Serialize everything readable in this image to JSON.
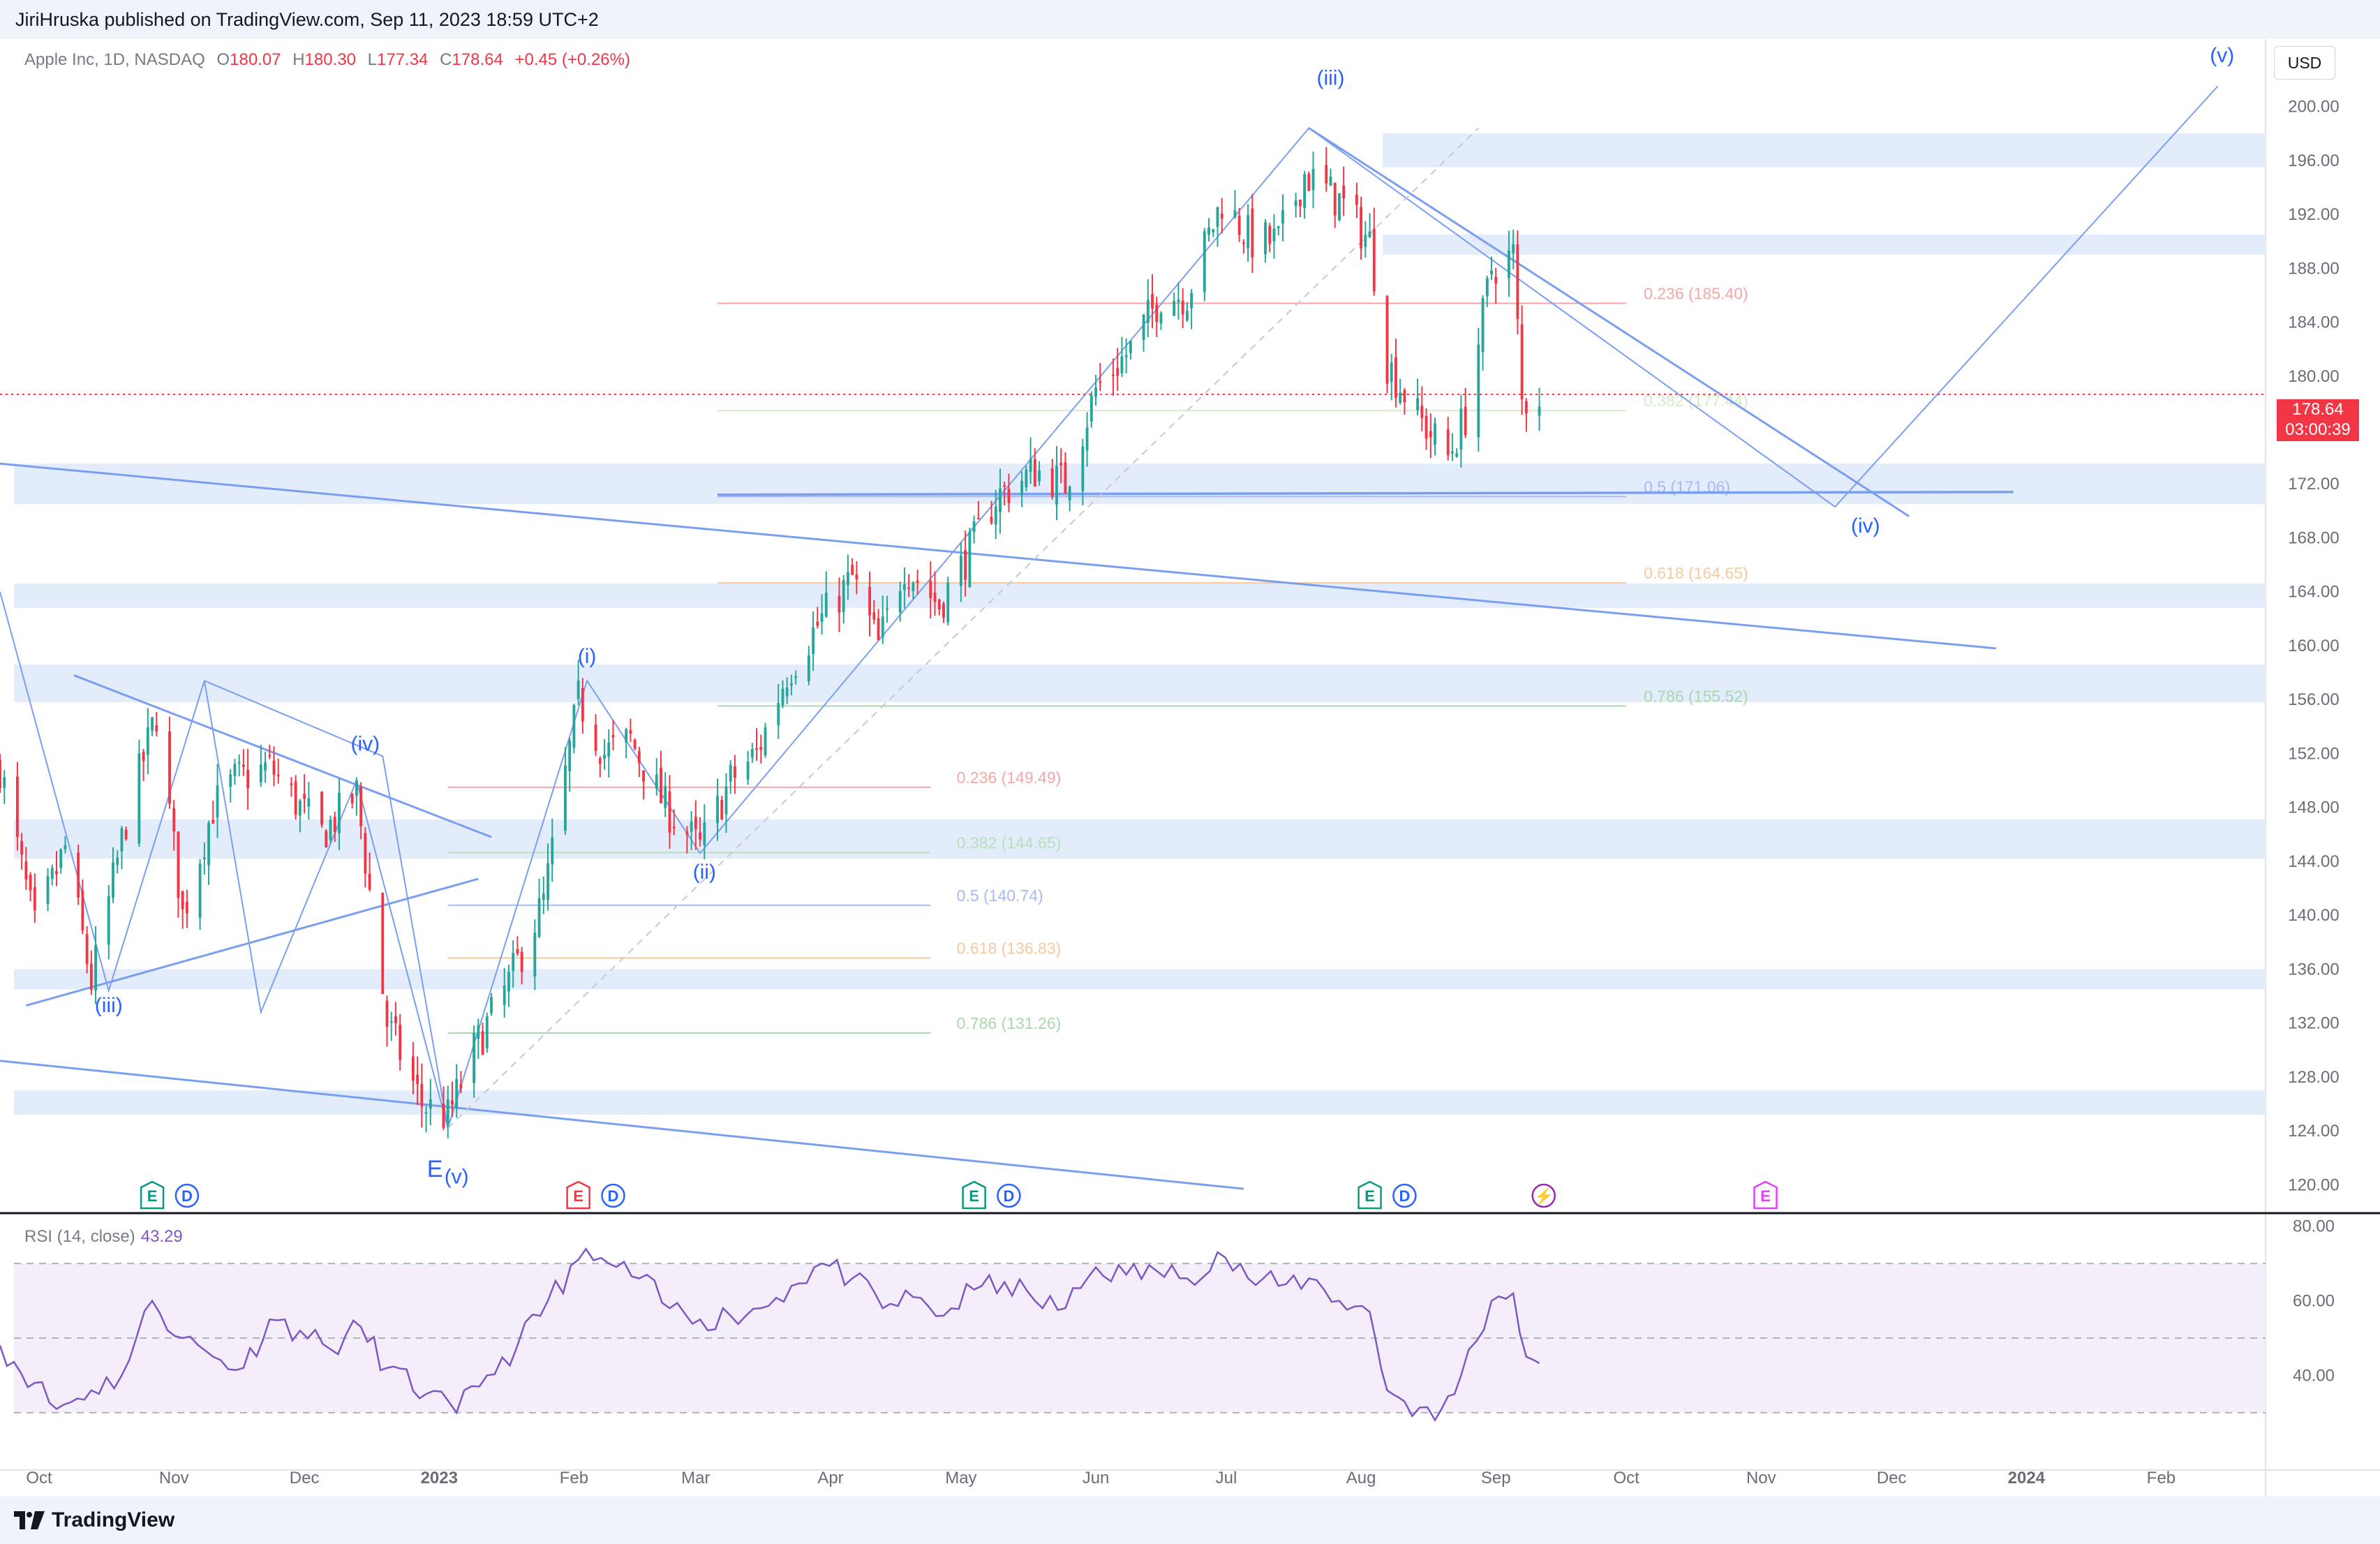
{
  "header": {
    "publisher": "JiriHruska published on TradingView.com, Sep 11, 2023 18:59 UTC+2"
  },
  "legend": {
    "symbol": "Apple Inc, 1D, NASDAQ",
    "o_key": "O",
    "o": "180.07",
    "h_key": "H",
    "h": "180.30",
    "l_key": "L",
    "l": "177.34",
    "c_key": "C",
    "c": "178.64",
    "change": "+0.45 (+0.26%)"
  },
  "currency": "USD",
  "price_tag": {
    "price": "178.64",
    "countdown": "03:00:39"
  },
  "rsi": {
    "label": "RSI (14, close)",
    "value": "43.29"
  },
  "footer": {
    "brand": "TradingView"
  },
  "colors": {
    "up": "#26a69a",
    "down": "#f23645",
    "line": "#7b9ff0",
    "wave_label": "#2962ff",
    "rsi": "#7e57c2",
    "zone": "#e3ecfb"
  },
  "chart_data": {
    "type": "line",
    "subtype": "candlestick with Elliott-wave annotations",
    "x_axis": {
      "tick_labels": [
        "Oct",
        "Nov",
        "Dec",
        "2023",
        "Feb",
        "Mar",
        "Apr",
        "May",
        "Jun",
        "Jul",
        "Aug",
        "Sep",
        "Oct",
        "Nov",
        "Dec",
        "2024",
        "Feb"
      ],
      "range": [
        "2022-09-22",
        "2024-02-25"
      ]
    },
    "y_axis": {
      "side": "right",
      "ylim": [
        118,
        205
      ],
      "ticks": [
        120,
        124,
        128,
        132,
        136,
        140,
        144,
        148,
        152,
        156,
        160,
        164,
        168,
        172,
        176,
        180,
        184,
        188,
        192,
        196,
        200
      ]
    },
    "price_path": [
      [
        "2022-09-22",
        151
      ],
      [
        "2022-09-30",
        139
      ],
      [
        "2022-10-07",
        145
      ],
      [
        "2022-10-13",
        135
      ],
      [
        "2022-10-21",
        147
      ],
      [
        "2022-10-28",
        155
      ],
      [
        "2022-11-03",
        140
      ],
      [
        "2022-11-10",
        148
      ],
      [
        "2022-11-15",
        150
      ],
      [
        "2022-11-23",
        151
      ],
      [
        "2022-11-30",
        148
      ],
      [
        "2022-12-05",
        146
      ],
      [
        "2022-12-13",
        149
      ],
      [
        "2022-12-20",
        132
      ],
      [
        "2022-12-28",
        126
      ],
      [
        "2023-01-03",
        125
      ],
      [
        "2023-01-09",
        130
      ],
      [
        "2023-01-17",
        135
      ],
      [
        "2023-01-25",
        141
      ],
      [
        "2023-02-02",
        156
      ],
      [
        "2023-02-08",
        152
      ],
      [
        "2023-02-14",
        153
      ],
      [
        "2023-02-22",
        148
      ],
      [
        "2023-03-02",
        145
      ],
      [
        "2023-03-09",
        150
      ],
      [
        "2023-03-15",
        152
      ],
      [
        "2023-03-22",
        158
      ],
      [
        "2023-03-30",
        162
      ],
      [
        "2023-04-06",
        165
      ],
      [
        "2023-04-12",
        160
      ],
      [
        "2023-04-18",
        166
      ],
      [
        "2023-04-26",
        163
      ],
      [
        "2023-05-03",
        167
      ],
      [
        "2023-05-09",
        171
      ],
      [
        "2023-05-18",
        173
      ],
      [
        "2023-05-25",
        172
      ],
      [
        "2023-06-01",
        179
      ],
      [
        "2023-06-09",
        182
      ],
      [
        "2023-06-16",
        186
      ],
      [
        "2023-06-22",
        186
      ],
      [
        "2023-06-30",
        193
      ],
      [
        "2023-07-07",
        190
      ],
      [
        "2023-07-13",
        190
      ],
      [
        "2023-07-19",
        195
      ],
      [
        "2023-07-27",
        193
      ],
      [
        "2023-08-03",
        190
      ],
      [
        "2023-08-07",
        181
      ],
      [
        "2023-08-14",
        177
      ],
      [
        "2023-08-21",
        174
      ],
      [
        "2023-08-25",
        177
      ],
      [
        "2023-08-31",
        188
      ],
      [
        "2023-09-05",
        189
      ],
      [
        "2023-09-07",
        178
      ],
      [
        "2023-09-11",
        178.64
      ]
    ],
    "fib_levels_set1": [
      {
        "label": "0.236 (149.49)",
        "value": 149.49,
        "color": "#f7a6a6"
      },
      {
        "label": "0.382 (144.65)",
        "value": 144.65,
        "color": "#b8e0bb"
      },
      {
        "label": "0.5 (140.74)",
        "value": 140.74,
        "color": "#a9b9f2"
      },
      {
        "label": "0.618 (136.83)",
        "value": 136.83,
        "color": "#f8c89e"
      },
      {
        "label": "0.786 (131.26)",
        "value": 131.26,
        "color": "#a8d8ab"
      }
    ],
    "fib_levels_set2": [
      {
        "label": "0.236 (185.40)",
        "value": 185.4,
        "color": "#f7a6a6"
      },
      {
        "label": "0.382 (177.44)",
        "value": 177.44,
        "color": "#d8e8c8"
      },
      {
        "label": "0.5 (171.06)",
        "value": 171.06,
        "color": "#a9b9f2"
      },
      {
        "label": "0.618 (164.65)",
        "value": 164.65,
        "color": "#f8c89e"
      },
      {
        "label": "0.786 (155.52)",
        "value": 155.52,
        "color": "#a8d8ab"
      }
    ],
    "wave_labels": [
      {
        "text": "(iii)",
        "date": "2022-10-17",
        "price": 132.8
      },
      {
        "text": "(iv)",
        "date": "2022-12-15",
        "price": 152.2
      },
      {
        "text": "E",
        "date": "2022-12-31",
        "price": 120.6
      },
      {
        "text": "(v)",
        "date": "2023-01-05",
        "price": 120.1
      },
      {
        "text": "(i)",
        "date": "2023-02-04",
        "price": 158.7
      },
      {
        "text": "(ii)",
        "date": "2023-03-03",
        "price": 142.7
      },
      {
        "text": "(iii)",
        "date": "2023-07-25",
        "price": 201.6
      },
      {
        "text": "(iv)",
        "date": "2023-11-25",
        "price": 168.4
      },
      {
        "text": "(v)",
        "date": "2024-02-15",
        "price": 203.3
      }
    ],
    "event_markers": [
      {
        "type": "E",
        "date": "2022-10-27",
        "style": "earnings-up"
      },
      {
        "type": "D",
        "date": "2022-11-04",
        "style": "dividend"
      },
      {
        "type": "E",
        "date": "2023-02-02",
        "style": "earnings-down"
      },
      {
        "type": "D",
        "date": "2023-02-10",
        "style": "dividend"
      },
      {
        "type": "E",
        "date": "2023-05-04",
        "style": "earnings-up"
      },
      {
        "type": "D",
        "date": "2023-05-12",
        "style": "dividend"
      },
      {
        "type": "E",
        "date": "2023-08-03",
        "style": "earnings-up"
      },
      {
        "type": "D",
        "date": "2023-08-11",
        "style": "dividend"
      },
      {
        "type": "⚡",
        "date": "2023-09-12",
        "style": "split"
      },
      {
        "type": "E",
        "date": "2023-11-02",
        "style": "earnings-future"
      }
    ],
    "rsi_panel": {
      "ylim": [
        15,
        82
      ],
      "ticks": [
        40,
        60,
        80
      ],
      "band": [
        30,
        70
      ],
      "midline": 50,
      "series": [
        [
          "2022-09-22",
          48
        ],
        [
          "2022-09-30",
          38
        ],
        [
          "2022-10-05",
          31
        ],
        [
          "2022-10-13",
          36
        ],
        [
          "2022-10-20",
          40
        ],
        [
          "2022-10-27",
          60
        ],
        [
          "2022-11-03",
          50
        ],
        [
          "2022-11-10",
          45
        ],
        [
          "2022-11-17",
          42
        ],
        [
          "2022-11-23",
          55
        ],
        [
          "2022-11-30",
          52
        ],
        [
          "2022-12-07",
          47
        ],
        [
          "2022-12-14",
          53
        ],
        [
          "2022-12-20",
          42
        ],
        [
          "2022-12-29",
          35
        ],
        [
          "2023-01-05",
          30
        ],
        [
          "2023-01-12",
          40
        ],
        [
          "2023-01-19",
          48
        ],
        [
          "2023-01-26",
          60
        ],
        [
          "2023-02-02",
          71
        ],
        [
          "2023-02-09",
          70
        ],
        [
          "2023-02-16",
          66
        ],
        [
          "2023-02-23",
          58
        ],
        [
          "2023-03-02",
          55
        ],
        [
          "2023-03-09",
          56
        ],
        [
          "2023-03-16",
          58
        ],
        [
          "2023-03-23",
          64
        ],
        [
          "2023-03-30",
          70
        ],
        [
          "2023-04-06",
          66
        ],
        [
          "2023-04-13",
          58
        ],
        [
          "2023-04-20",
          61
        ],
        [
          "2023-04-27",
          56
        ],
        [
          "2023-05-04",
          63
        ],
        [
          "2023-05-11",
          65
        ],
        [
          "2023-05-18",
          60
        ],
        [
          "2023-05-25",
          58
        ],
        [
          "2023-06-01",
          69
        ],
        [
          "2023-06-08",
          67
        ],
        [
          "2023-06-15",
          68
        ],
        [
          "2023-06-22",
          66
        ],
        [
          "2023-06-29",
          73
        ],
        [
          "2023-07-06",
          66
        ],
        [
          "2023-07-13",
          64
        ],
        [
          "2023-07-20",
          66
        ],
        [
          "2023-07-27",
          60
        ],
        [
          "2023-08-03",
          57
        ],
        [
          "2023-08-07",
          36
        ],
        [
          "2023-08-11",
          33
        ],
        [
          "2023-08-18",
          28
        ],
        [
          "2023-08-24",
          40
        ],
        [
          "2023-08-31",
          60
        ],
        [
          "2023-09-05",
          62
        ],
        [
          "2023-09-08",
          45
        ],
        [
          "2023-09-11",
          43.29
        ]
      ]
    }
  }
}
